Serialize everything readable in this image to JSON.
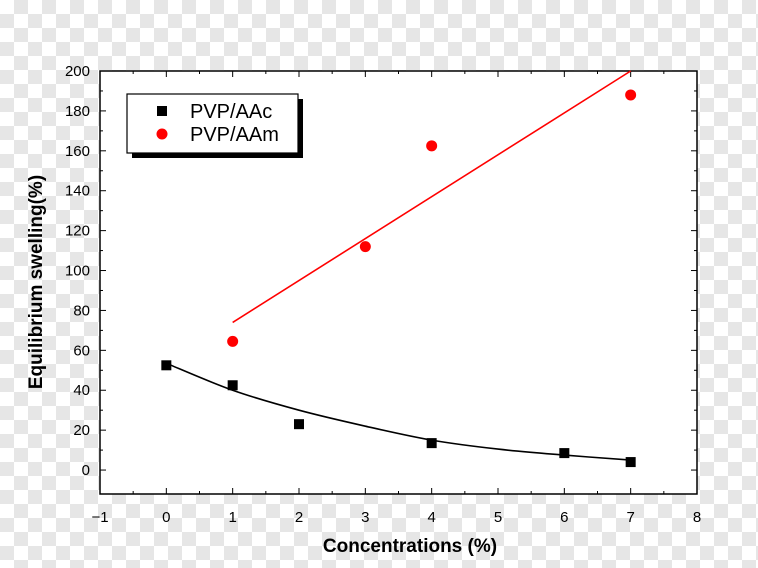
{
  "chart_data": {
    "type": "scatter",
    "xlabel": "Concentrations (%)",
    "ylabel": "Equilibrium swelling(%)",
    "xlim": [
      -1,
      8
    ],
    "ylim": [
      -12,
      200
    ],
    "xticks": [
      -1,
      0,
      1,
      2,
      3,
      4,
      5,
      6,
      7,
      8
    ],
    "yticks": [
      0,
      20,
      40,
      60,
      80,
      100,
      120,
      140,
      160,
      180,
      200
    ],
    "grid": false,
    "legend_position": "top-left",
    "series": [
      {
        "name": "PVP/AAc",
        "marker": "square",
        "color": "#000000",
        "points": [
          {
            "x": 0,
            "y": 52.5
          },
          {
            "x": 1,
            "y": 42.5
          },
          {
            "x": 2,
            "y": 23
          },
          {
            "x": 4,
            "y": 13.5
          },
          {
            "x": 6,
            "y": 8.5
          },
          {
            "x": 7,
            "y": 4
          }
        ],
        "fit": {
          "kind": "exponential-decay",
          "color": "#000000",
          "points": [
            {
              "x": 0,
              "y": 53.5
            },
            {
              "x": 1,
              "y": 40
            },
            {
              "x": 2,
              "y": 30
            },
            {
              "x": 3,
              "y": 22
            },
            {
              "x": 4,
              "y": 15
            },
            {
              "x": 5,
              "y": 10.5
            },
            {
              "x": 6,
              "y": 7.5
            },
            {
              "x": 7,
              "y": 5
            }
          ]
        }
      },
      {
        "name": "PVP/AAm",
        "marker": "circle",
        "color": "#ff0000",
        "points": [
          {
            "x": 1,
            "y": 64.5
          },
          {
            "x": 3,
            "y": 112
          },
          {
            "x": 4,
            "y": 162.5
          },
          {
            "x": 7,
            "y": 188
          }
        ],
        "fit": {
          "kind": "linear",
          "color": "#ff0000",
          "points": [
            {
              "x": 1,
              "y": 74
            },
            {
              "x": 7,
              "y": 200
            }
          ]
        }
      }
    ]
  }
}
